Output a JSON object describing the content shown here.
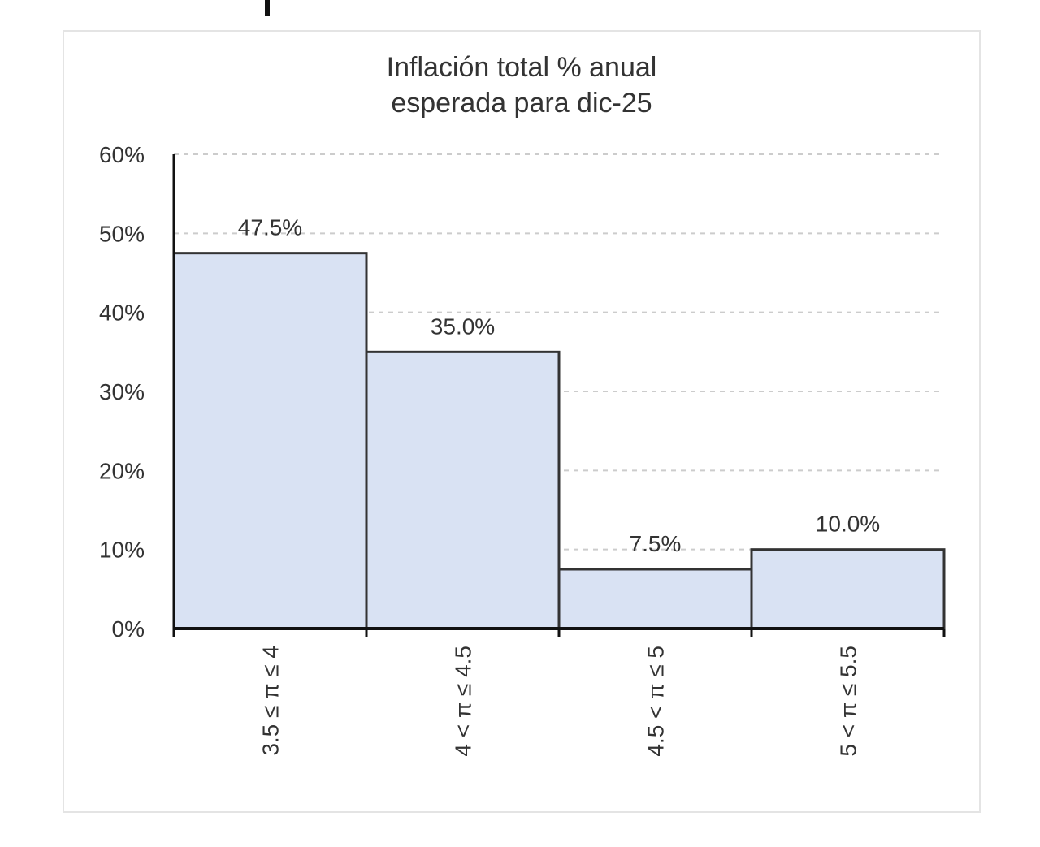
{
  "chart_data": {
    "type": "bar",
    "title": [
      "Inflación total % anual",
      "esperada para dic-25"
    ],
    "categories": [
      "3.5 ≤ π ≤ 4",
      "4 < π ≤ 4.5",
      "4.5 < π ≤ 5",
      "5 < π ≤ 5.5"
    ],
    "values": [
      47.5,
      35,
      7.5,
      10
    ],
    "value_labels": [
      "47.5%",
      "35.0%",
      "7.5%",
      "10.0%"
    ],
    "color": "#d9e2f3",
    "ylim": [
      0,
      60
    ],
    "yticks": [
      {
        "value": 0,
        "label": "0%"
      },
      {
        "value": 10,
        "label": "10%"
      },
      {
        "value": 20,
        "label": "20%"
      },
      {
        "value": 30,
        "label": "30%"
      },
      {
        "value": 40,
        "label": "40%"
      },
      {
        "value": 50,
        "label": "50%"
      },
      {
        "value": 60,
        "label": "60%"
      }
    ],
    "grid": true
  }
}
